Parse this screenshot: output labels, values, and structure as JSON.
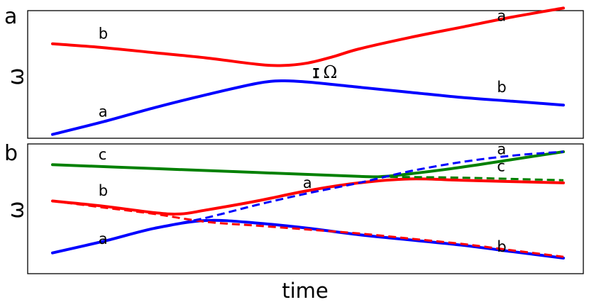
{
  "chart_data": [
    {
      "type": "line",
      "panel_label": "a",
      "xlabel": "",
      "ylabel": "ω",
      "xlim": [
        0,
        1
      ],
      "ylim": [
        0,
        1
      ],
      "grid": false,
      "series": [
        {
          "id": "red",
          "color": "#ff0000",
          "dashed": false,
          "x": [
            0,
            0.1,
            0.2,
            0.3,
            0.4,
            0.45,
            0.5,
            0.55,
            0.6,
            0.7,
            0.8,
            0.9,
            1.0
          ],
          "y": [
            0.74,
            0.71,
            0.67,
            0.63,
            0.58,
            0.57,
            0.59,
            0.64,
            0.7,
            0.79,
            0.87,
            0.95,
            1.02
          ]
        },
        {
          "id": "blue",
          "color": "#0000ff",
          "dashed": false,
          "x": [
            0,
            0.1,
            0.2,
            0.3,
            0.4,
            0.45,
            0.5,
            0.6,
            0.7,
            0.8,
            0.9,
            1.0
          ],
          "y": [
            0.03,
            0.13,
            0.24,
            0.34,
            0.43,
            0.45,
            0.44,
            0.4,
            0.36,
            0.32,
            0.29,
            0.26
          ]
        }
      ],
      "curve_labels": [
        {
          "text": "b",
          "x": 0.09,
          "y": 0.78
        },
        {
          "text": "a",
          "x": 0.87,
          "y": 0.92
        },
        {
          "text": "a",
          "x": 0.09,
          "y": 0.17
        },
        {
          "text": "b",
          "x": 0.87,
          "y": 0.36
        }
      ],
      "gap_annotation": {
        "label": "Ω",
        "x": 0.52,
        "y_low": 0.45,
        "y_high": 0.56
      }
    },
    {
      "type": "line",
      "panel_label": "b",
      "xlabel": "time",
      "ylabel": "ω",
      "xlim": [
        0,
        1
      ],
      "ylim": [
        0,
        1
      ],
      "grid": false,
      "series": [
        {
          "id": "green",
          "color": "#008000",
          "dashed": false,
          "x": [
            0,
            0.2,
            0.4,
            0.6,
            0.65,
            0.7,
            0.8,
            0.9,
            1.0
          ],
          "y": [
            0.84,
            0.81,
            0.78,
            0.75,
            0.75,
            0.77,
            0.82,
            0.88,
            0.94
          ]
        },
        {
          "id": "red",
          "color": "#ff0000",
          "dashed": false,
          "x": [
            0,
            0.1,
            0.2,
            0.25,
            0.3,
            0.4,
            0.5,
            0.6,
            0.7,
            0.8,
            0.9,
            1.0
          ],
          "y": [
            0.56,
            0.52,
            0.47,
            0.46,
            0.49,
            0.56,
            0.64,
            0.7,
            0.73,
            0.72,
            0.71,
            0.7
          ]
        },
        {
          "id": "blue",
          "color": "#0000ff",
          "dashed": false,
          "x": [
            0,
            0.1,
            0.2,
            0.3,
            0.4,
            0.5,
            0.6,
            0.7,
            0.8,
            0.9,
            1.0
          ],
          "y": [
            0.16,
            0.25,
            0.35,
            0.41,
            0.39,
            0.35,
            0.3,
            0.26,
            0.22,
            0.17,
            0.12
          ]
        },
        {
          "id": "green-dashed",
          "color": "#008000",
          "dashed": true,
          "x": [
            0,
            0.2,
            0.4,
            0.6,
            0.7,
            0.8,
            0.9,
            1.0
          ],
          "y": [
            0.84,
            0.81,
            0.78,
            0.75,
            0.745,
            0.74,
            0.73,
            0.72
          ]
        },
        {
          "id": "red-dashed",
          "color": "#ff0000",
          "dashed": true,
          "x": [
            0,
            0.1,
            0.2,
            0.3,
            0.4,
            0.5,
            0.6,
            0.7,
            0.8,
            0.9,
            1.0
          ],
          "y": [
            0.56,
            0.51,
            0.46,
            0.4,
            0.37,
            0.34,
            0.31,
            0.27,
            0.23,
            0.18,
            0.13
          ]
        },
        {
          "id": "blue-dashed",
          "color": "#0000ff",
          "dashed": true,
          "x": [
            0,
            0.1,
            0.2,
            0.3,
            0.4,
            0.5,
            0.6,
            0.7,
            0.8,
            0.9,
            1.0
          ],
          "y": [
            0.16,
            0.25,
            0.35,
            0.43,
            0.53,
            0.62,
            0.7,
            0.79,
            0.86,
            0.91,
            0.94
          ]
        }
      ],
      "curve_labels": [
        {
          "text": "c",
          "x": 0.09,
          "y": 0.88
        },
        {
          "text": "a",
          "x": 0.87,
          "y": 0.92
        },
        {
          "text": "b",
          "x": 0.09,
          "y": 0.6
        },
        {
          "text": "a",
          "x": 0.49,
          "y": 0.66
        },
        {
          "text": "c",
          "x": 0.87,
          "y": 0.79
        },
        {
          "text": "a",
          "x": 0.09,
          "y": 0.23
        },
        {
          "text": "b",
          "x": 0.87,
          "y": 0.17
        }
      ]
    }
  ]
}
